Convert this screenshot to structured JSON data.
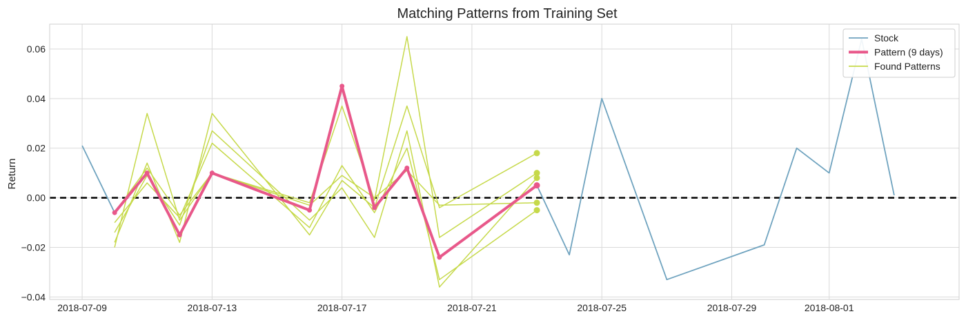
{
  "chart_data": {
    "type": "line",
    "title": "Matching Patterns from Training Set",
    "xlabel": "",
    "ylabel": "Return",
    "xlim": [
      "2018-07-08",
      "2018-08-05"
    ],
    "ylim": [
      -0.041,
      0.07
    ],
    "grid": true,
    "legend_position": "top-right",
    "x_ticks": [
      "2018-07-09",
      "2018-07-13",
      "2018-07-17",
      "2018-07-21",
      "2018-07-25",
      "2018-07-29",
      "2018-08-01"
    ],
    "y_ticks": [
      -0.04,
      -0.02,
      0.0,
      0.02,
      0.04,
      0.06
    ],
    "y_tick_labels": [
      "−0.04",
      "−0.02",
      "0.00",
      "0.02",
      "0.04",
      "0.06"
    ],
    "reference_line": {
      "y": 0.0,
      "style": "dashed",
      "color": "#000000"
    },
    "colors": {
      "stock": "#6fa3bf",
      "pattern": "#e8588a",
      "found": "#c6d94a"
    },
    "legend": [
      "Stock",
      "Pattern (9 days)",
      "Found Patterns"
    ],
    "series": [
      {
        "name": "Stock",
        "x": [
          "2018-07-09",
          "2018-07-10",
          "2018-07-11",
          "2018-07-12",
          "2018-07-13",
          "2018-07-16",
          "2018-07-17",
          "2018-07-18",
          "2018-07-19",
          "2018-07-20",
          "2018-07-23",
          "2018-07-24",
          "2018-07-25",
          "2018-07-27",
          "2018-07-30",
          "2018-07-31",
          "2018-08-01",
          "2018-08-02",
          "2018-08-03"
        ],
        "y": [
          0.021,
          -0.006,
          0.01,
          -0.015,
          0.01,
          -0.005,
          0.045,
          -0.004,
          0.012,
          -0.024,
          0.005,
          -0.023,
          0.04,
          -0.033,
          -0.019,
          0.02,
          0.01,
          0.064,
          0.001
        ]
      },
      {
        "name": "Pattern (9 days)",
        "x": [
          "2018-07-10",
          "2018-07-11",
          "2018-07-12",
          "2018-07-13",
          "2018-07-16",
          "2018-07-17",
          "2018-07-18",
          "2018-07-19",
          "2018-07-20",
          "2018-07-23"
        ],
        "y": [
          -0.006,
          0.01,
          -0.015,
          0.01,
          -0.005,
          0.045,
          -0.004,
          0.012,
          -0.024,
          0.005
        ]
      },
      {
        "name": "Found Patterns",
        "x": [
          "2018-07-10",
          "2018-07-11",
          "2018-07-12",
          "2018-07-13",
          "2018-07-16",
          "2018-07-17",
          "2018-07-18",
          "2018-07-19",
          "2018-07-20",
          "2018-07-23"
        ],
        "lines": [
          [
            -0.02,
            0.034,
            -0.009,
            0.01,
            -0.002,
            0.037,
            -0.001,
            0.065,
            -0.016,
            0.01
          ],
          [
            -0.018,
            0.014,
            -0.018,
            0.034,
            -0.015,
            0.007,
            -0.004,
            0.037,
            -0.004,
            0.018
          ],
          [
            -0.014,
            0.009,
            -0.011,
            0.027,
            -0.009,
            0.004,
            -0.016,
            0.027,
            -0.036,
            0.008
          ],
          [
            -0.01,
            0.006,
            -0.008,
            0.022,
            -0.012,
            0.013,
            -0.006,
            0.02,
            -0.033,
            -0.005
          ],
          [
            -0.006,
            0.012,
            -0.007,
            0.01,
            -0.003,
            0.009,
            0.0,
            0.011,
            -0.003,
            -0.002
          ]
        ]
      }
    ]
  }
}
